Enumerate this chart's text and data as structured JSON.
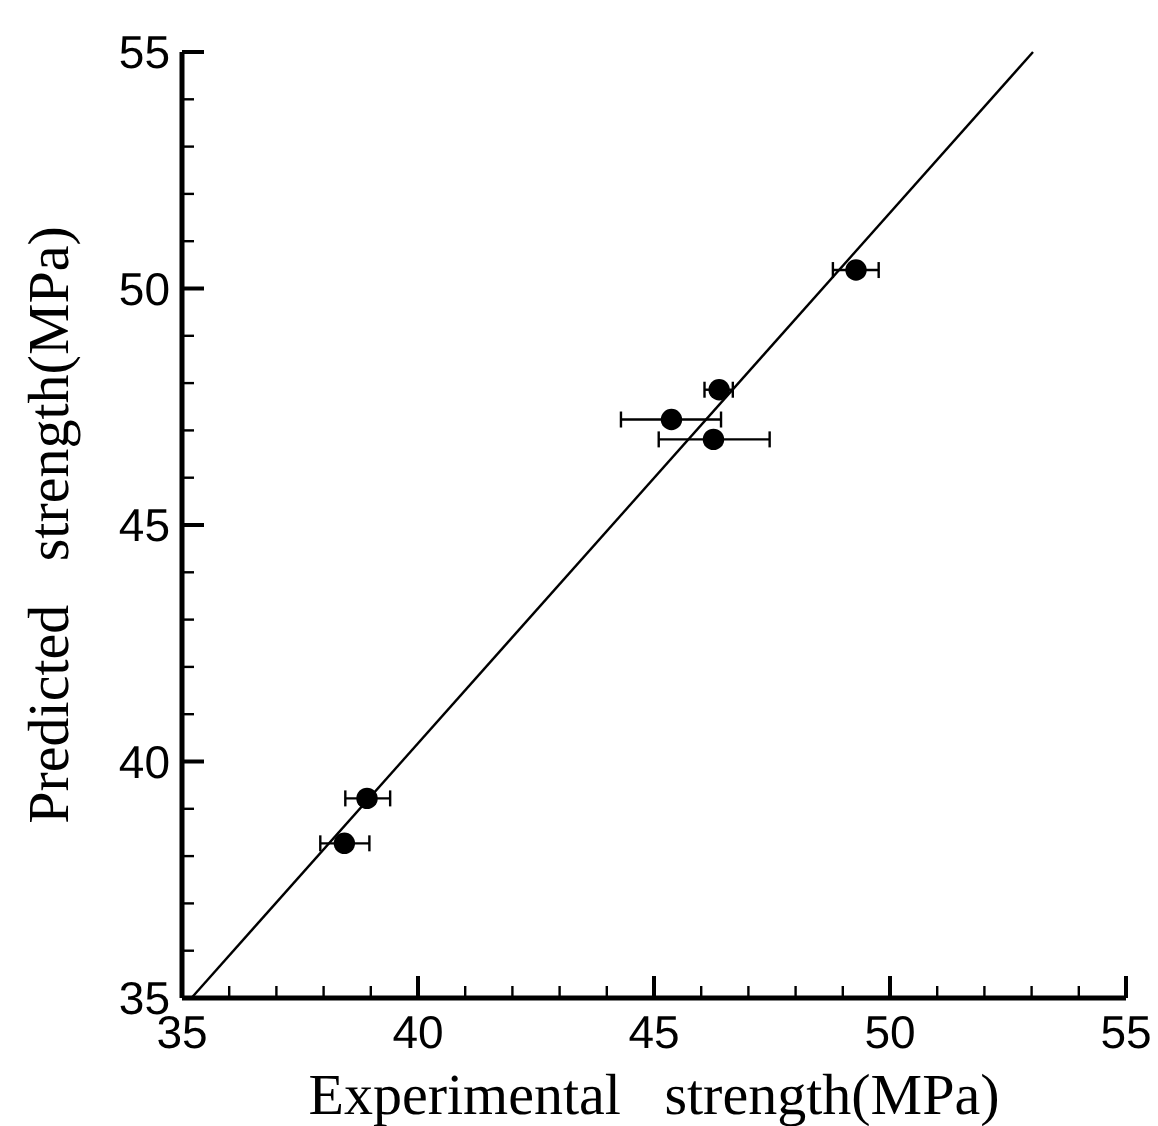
{
  "chart_data": {
    "type": "scatter",
    "xlabel": "Experimental   strength(MPa)",
    "ylabel": "Predicted   strength(MPa)",
    "xlim": [
      35,
      55
    ],
    "ylim": [
      35,
      55
    ],
    "xticks": [
      35,
      {
        "value": 36,
        "label": null
      },
      {
        "value": 37,
        "label": null
      },
      {
        "value": 38,
        "label": null
      },
      {
        "value": 39,
        "label": null
      },
      40,
      {
        "value": 41,
        "label": null
      },
      {
        "value": 42,
        "label": null
      },
      {
        "value": 43,
        "label": null
      },
      {
        "value": 44,
        "label": null
      },
      45,
      {
        "value": 46,
        "label": null
      },
      {
        "value": 47,
        "label": null
      },
      {
        "value": 48,
        "label": null
      },
      {
        "value": 49,
        "label": null
      },
      50,
      {
        "value": 51,
        "label": null
      },
      {
        "value": 52,
        "label": null
      },
      {
        "value": 53,
        "label": null
      },
      {
        "value": 54,
        "label": null
      },
      55
    ],
    "yticks": [
      35,
      {
        "value": 36,
        "label": null
      },
      {
        "value": 37,
        "label": null
      },
      {
        "value": 38,
        "label": null
      },
      {
        "value": 39,
        "label": null
      },
      40,
      {
        "value": 41,
        "label": null
      },
      {
        "value": 42,
        "label": null
      },
      {
        "value": 43,
        "label": null
      },
      {
        "value": 44,
        "label": null
      },
      45,
      {
        "value": 46,
        "label": null
      },
      {
        "value": 47,
        "label": null
      },
      {
        "value": 48,
        "label": null
      },
      {
        "value": 49,
        "label": null
      },
      50,
      {
        "value": 51,
        "label": null
      },
      {
        "value": 52,
        "label": null
      },
      {
        "value": 53,
        "label": null
      },
      {
        "value": 54,
        "label": null
      },
      55
    ],
    "grid": false,
    "series": [
      {
        "color": "#000000",
        "marker": "circle",
        "x": [
          38.44,
          38.92,
          45.37,
          46.26,
          46.38,
          49.28
        ],
        "values": [
          38.27,
          39.22,
          47.23,
          46.81,
          47.86,
          50.39
        ],
        "xerrors": [
          [
            37.93,
            38.97
          ],
          [
            38.46,
            39.41
          ],
          [
            44.3,
            46.42
          ],
          [
            45.1,
            47.45
          ],
          [
            46.07,
            46.67
          ],
          [
            48.79,
            49.76
          ]
        ]
      },
      {
        "type": "line",
        "color": "#000000",
        "line_style": "solid",
        "marker": "none",
        "x": [
          35.2,
          53.03
        ],
        "values": [
          35,
          55
        ]
      }
    ]
  }
}
